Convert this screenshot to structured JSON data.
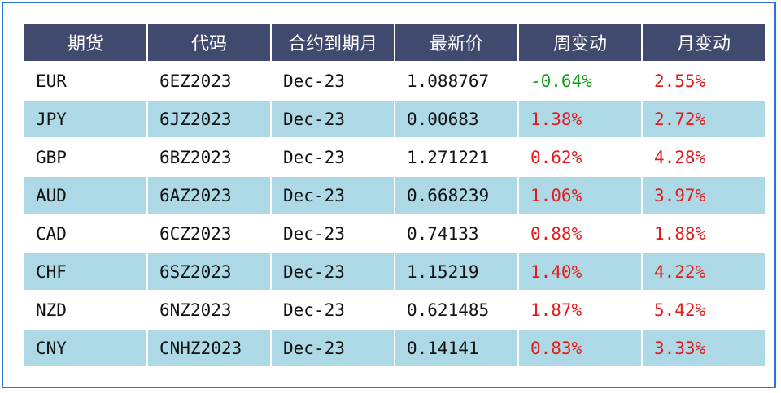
{
  "table": {
    "headers": [
      "期货",
      "代码",
      "合约到期月",
      "最新价",
      "周变动",
      "月变动"
    ],
    "rows": [
      {
        "future": "EUR",
        "code": "6EZ2023",
        "expiry": "Dec-23",
        "price": "1.088767",
        "week_change": "-0.64%",
        "month_change": "2.55%"
      },
      {
        "future": "JPY",
        "code": "6JZ2023",
        "expiry": "Dec-23",
        "price": "0.00683",
        "week_change": "1.38%",
        "month_change": "2.72%"
      },
      {
        "future": "GBP",
        "code": "6BZ2023",
        "expiry": "Dec-23",
        "price": "1.271221",
        "week_change": "0.62%",
        "month_change": "4.28%"
      },
      {
        "future": "AUD",
        "code": "6AZ2023",
        "expiry": "Dec-23",
        "price": "0.668239",
        "week_change": "1.06%",
        "month_change": "3.97%"
      },
      {
        "future": "CAD",
        "code": "6CZ2023",
        "expiry": "Dec-23",
        "price": "0.74133",
        "week_change": "0.88%",
        "month_change": "1.88%"
      },
      {
        "future": "CHF",
        "code": "6SZ2023",
        "expiry": "Dec-23",
        "price": "1.15219",
        "week_change": "1.40%",
        "month_change": "4.22%"
      },
      {
        "future": "NZD",
        "code": "6NZ2023",
        "expiry": "Dec-23",
        "price": "0.621485",
        "week_change": "1.87%",
        "month_change": "5.42%"
      },
      {
        "future": "CNY",
        "code": "CNHZ2023",
        "expiry": "Dec-23",
        "price": "0.14141",
        "week_change": "0.83%",
        "month_change": "3.33%"
      }
    ]
  },
  "colors": {
    "header_bg": "#3f4a6e",
    "alt_row_bg": "#add9e6",
    "positive": "#e51a1a",
    "negative": "#1a9a1a",
    "border": "#2b73e0"
  }
}
